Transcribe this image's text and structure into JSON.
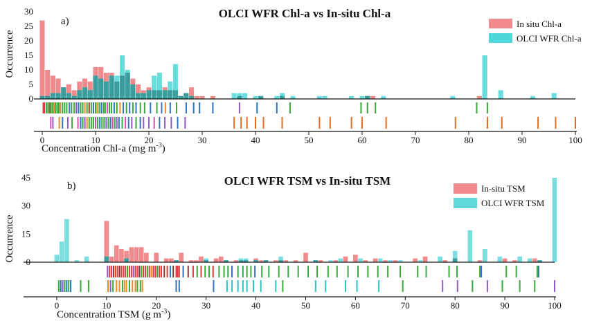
{
  "chart_data": [
    {
      "type": "bar",
      "panel_label": "a)",
      "title": "OLCI WFR Chl-a vs In-situ Chl-a",
      "xlabel": "Concentration Chl-a (mg m",
      "xlabel_sup": "-3",
      "xlabel_end": ")",
      "ylabel": "Occurrence",
      "xlim": [
        0,
        100
      ],
      "ylim": [
        0,
        30
      ],
      "yticks": [
        0,
        5,
        10,
        15,
        20,
        25,
        30
      ],
      "xticks": [
        0,
        10,
        20,
        30,
        40,
        50,
        60,
        70,
        80,
        90,
        100
      ],
      "bin_width": 1,
      "legend_position": "top-right",
      "colors": {
        "in_situ": "#f08a8c",
        "olci": "#4fd6d8",
        "overlap": "#3a9e9f"
      },
      "series": [
        {
          "name": "In situ Chl-a",
          "key": "in_situ",
          "x": [
            0,
            1,
            2,
            3,
            4,
            5,
            6,
            7,
            8,
            9,
            10,
            11,
            12,
            13,
            14,
            15,
            16,
            17,
            18,
            19,
            20,
            21,
            22,
            23,
            24,
            25,
            26,
            27,
            28,
            29,
            30,
            32,
            37,
            41,
            45,
            61,
            62,
            82
          ],
          "values": [
            27,
            10,
            8,
            7,
            4,
            5,
            3,
            6,
            7,
            6,
            11,
            11,
            9,
            9,
            6,
            8,
            9,
            7,
            5,
            3,
            4,
            3,
            3,
            4,
            3,
            3,
            1,
            2,
            4,
            1,
            1,
            1,
            1,
            1,
            1,
            1,
            1,
            1
          ]
        },
        {
          "name": "OLCI WFR Chl-a",
          "key": "olci",
          "x": [
            0,
            1,
            2,
            3,
            4,
            5,
            6,
            7,
            8,
            9,
            10,
            11,
            12,
            13,
            14,
            15,
            16,
            17,
            18,
            19,
            20,
            21,
            22,
            23,
            24,
            25,
            26,
            27,
            28,
            36,
            37,
            38,
            40,
            41,
            44,
            45,
            47,
            52,
            53,
            58,
            60,
            61,
            64,
            77,
            83,
            86,
            92,
            96
          ],
          "values": [
            1,
            1,
            2,
            2,
            4,
            2,
            1,
            3,
            4,
            3,
            8,
            7,
            6,
            8,
            8,
            15,
            10,
            5,
            2,
            2,
            3,
            8,
            9,
            3,
            6,
            12,
            1,
            2,
            1,
            2,
            2,
            2,
            1,
            1,
            1,
            2,
            1,
            1,
            1,
            1,
            1,
            1,
            1,
            1,
            15,
            3,
            1,
            2
          ]
        }
      ],
      "rug": {
        "in_situ": {
          "x": [
            0.2,
            0.4,
            0.8,
            1.1,
            1.4,
            1.6,
            1.9,
            2.2,
            2.5,
            2.8,
            3.1,
            3.4,
            3.8,
            4.2,
            4.6,
            5.1,
            5.5,
            6.0,
            6.4,
            6.8,
            7.2,
            7.6,
            8.0,
            8.4,
            8.8,
            9.2,
            9.6,
            10.0,
            10.3,
            10.7,
            11.1,
            11.5,
            11.8,
            12.2,
            12.6,
            13.0,
            13.5,
            14.0,
            14.6,
            15.2,
            15.8,
            16.4,
            17.0,
            17.6,
            18.4,
            19.2,
            20.3,
            21.5,
            22.4,
            23.1,
            24.0,
            25.2,
            27.0,
            28.4,
            29.5,
            32.0,
            37.0,
            40.3,
            44.0,
            46.5,
            59.8,
            61.0,
            62.5,
            81.5,
            83.5
          ],
          "colors": [
            "#e33b3b",
            "#e33b3b",
            "#3aa83a",
            "#3aa83a",
            "#e33b3b",
            "#3aa83a",
            "#3aa83a",
            "#e88c2a",
            "#3aa83a",
            "#3aa83a",
            "#3aa83a",
            "#e88c2a",
            "#3aa83a",
            "#3aa83a",
            "#3aa83a",
            "#2c73c2",
            "#3aa83a",
            "#3aa83a",
            "#8e5bc9",
            "#2c73c2",
            "#3aa83a",
            "#3aa83a",
            "#e88c2a",
            "#3aa83a",
            "#8a3a2a",
            "#3aa83a",
            "#2c73c2",
            "#3aa83a",
            "#e88c2a",
            "#3aa83a",
            "#2c73c2",
            "#3aa83a",
            "#3aa83a",
            "#d64fb0",
            "#3aa83a",
            "#3aa83a",
            "#2c73c2",
            "#3aa83a",
            "#e88c2a",
            "#2c73c2",
            "#3aa83a",
            "#2c73c2",
            "#3aa83a",
            "#2c73c2",
            "#3aa83a",
            "#3aa83a",
            "#2c73c2",
            "#3aa83a",
            "#2c73c2",
            "#e88c2a",
            "#2c73c2",
            "#3aa83a",
            "#2c73c2",
            "#2c73c2",
            "#2c73c2",
            "#2c73c2",
            "#8e5bc9",
            "#2c73c2",
            "#2c73c2",
            "#3aa83a",
            "#3aa83a",
            "#3aa83a",
            "#3aa83a",
            "#3aa83a",
            "#3aa83a"
          ]
        },
        "olci": {
          "x": [
            1.6,
            2.0,
            3.2,
            3.8,
            4.8,
            5.6,
            6.7,
            7.2,
            7.6,
            8.0,
            8.4,
            8.8,
            9.2,
            9.6,
            10.0,
            10.4,
            10.8,
            11.2,
            11.6,
            12.0,
            12.4,
            12.8,
            13.2,
            13.6,
            14.0,
            14.4,
            15.0,
            15.6,
            16.2,
            16.8,
            17.6,
            18.4,
            19.0,
            20.0,
            21.0,
            22.0,
            23.0,
            24.2,
            25.4,
            26.8,
            36.0,
            37.3,
            38.4,
            40.0,
            41.5,
            45.0,
            52.0,
            54.0,
            58.0,
            60.0,
            64.5,
            77.5,
            83.5,
            86.2,
            93.0,
            96.3,
            100
          ],
          "colors": [
            "#d64fb0",
            "#8e5bc9",
            "#e88c2a",
            "#2c73c2",
            "#8e5bc9",
            "#3aa83a",
            "#d64fb0",
            "#2c73c2",
            "#3aa83a",
            "#8e5bc9",
            "#e88c2a",
            "#3aa83a",
            "#3aa83a",
            "#3aa83a",
            "#d64fb0",
            "#3aa83a",
            "#2c73c2",
            "#3aa83a",
            "#3aa83a",
            "#8e5bc9",
            "#3aa83a",
            "#2c73c2",
            "#d64fb0",
            "#3aa83a",
            "#8e5bc9",
            "#2c73c2",
            "#3aa83a",
            "#d64fb0",
            "#2c73c2",
            "#8e5bc9",
            "#3aa83a",
            "#2c73c2",
            "#8e5bc9",
            "#8e5bc9",
            "#d64fb0",
            "#2c73c2",
            "#8e5bc9",
            "#8e5bc9",
            "#2c73c2",
            "#8e5bc9",
            "#e36b1f",
            "#e36b1f",
            "#e36b1f",
            "#e36b1f",
            "#e36b1f",
            "#e36b1f",
            "#e36b1f",
            "#e36b1f",
            "#e36b1f",
            "#e36b1f",
            "#e36b1f",
            "#e36b1f",
            "#e36b1f",
            "#e36b1f",
            "#e36b1f",
            "#e36b1f",
            "#e36b1f"
          ]
        }
      }
    },
    {
      "type": "bar",
      "panel_label": "b)",
      "title": "OLCI WFR TSM vs In-situ TSM",
      "xlabel": "Concentration TSM (g m",
      "xlabel_sup": "-3",
      "xlabel_end": ")",
      "ylabel": "Occurrence",
      "xlim": [
        -5,
        100
      ],
      "ylim": [
        0,
        45
      ],
      "yticks": [
        0,
        15,
        30,
        45
      ],
      "xticks": [
        0,
        10,
        20,
        30,
        40,
        50,
        60,
        70,
        80,
        90,
        100
      ],
      "bin_width": 1,
      "legend_position": "top-right",
      "colors": {
        "in_situ": "#f08a8c",
        "olci": "#5fd9db",
        "overlap": "#3a9e9f"
      },
      "series": [
        {
          "name": "In-situ TSM",
          "key": "in_situ",
          "x": [
            10,
            11,
            12,
            13,
            14,
            15,
            16,
            17,
            18,
            20,
            22,
            23,
            24,
            25,
            27,
            28,
            29,
            30,
            32,
            33,
            34,
            36,
            37,
            38,
            40,
            41,
            42,
            44,
            45,
            46,
            48,
            50,
            52,
            53,
            56,
            58,
            60,
            62,
            64,
            66,
            68,
            72,
            74,
            78,
            80,
            85,
            90,
            92,
            96,
            97
          ],
          "values": [
            22,
            3,
            9,
            7,
            6,
            8,
            8,
            8,
            5,
            5,
            2,
            2,
            1,
            5,
            1,
            1,
            3,
            1,
            2,
            3,
            1,
            1,
            1,
            1,
            2,
            1,
            1,
            1,
            1,
            1,
            1,
            5,
            1,
            1,
            1,
            3,
            4,
            1,
            2,
            1,
            1,
            2,
            3,
            1,
            2,
            1,
            2,
            1,
            2,
            1
          ]
        },
        {
          "name": "OLCI WFR TSM",
          "key": "olci",
          "x": [
            0,
            1,
            2,
            4,
            6,
            10,
            14,
            24,
            30,
            34,
            37,
            38,
            40,
            42,
            45,
            52,
            55,
            57,
            61,
            65,
            67,
            69,
            73,
            77,
            80,
            83,
            86,
            89,
            93,
            95,
            97,
            100
          ],
          "values": [
            4,
            11,
            23,
            1,
            3,
            3,
            2,
            1,
            2,
            1,
            2,
            2,
            1,
            1,
            3,
            1,
            1,
            2,
            2,
            2,
            1,
            1,
            1,
            3,
            6,
            17,
            7,
            3,
            3,
            2,
            1,
            45
          ]
        }
      ],
      "rug": {
        "in_situ": {
          "x": [
            10.2,
            10.6,
            11.0,
            11.4,
            11.8,
            12.2,
            12.6,
            13.0,
            13.4,
            13.8,
            14.2,
            14.6,
            15.0,
            15.4,
            15.8,
            16.2,
            16.6,
            17.0,
            17.4,
            17.8,
            18.2,
            18.6,
            19.0,
            19.4,
            19.8,
            20.2,
            20.6,
            21.0,
            21.6,
            22.2,
            22.8,
            23.4,
            24.0,
            24.3,
            24.6,
            25.4,
            26.4,
            27.4,
            28.2,
            29.0,
            29.8,
            30.6,
            31.4,
            32.6,
            33.6,
            34.4,
            35.2,
            36.4,
            37.4,
            38.2,
            39.0,
            39.8,
            41.2,
            42.6,
            44.6,
            46.5,
            48.5,
            50.5,
            52.3,
            54.5,
            56.3,
            58.5,
            60.5,
            62.5,
            64.5,
            66.5,
            69.0,
            72.5,
            74.2,
            78.8,
            80.4,
            85.0,
            90.3,
            92.3,
            96.5
          ],
          "colors": [
            "#8e5bc9",
            "#e33b3b",
            "#e33b3b",
            "#8a3a2a",
            "#e33b3b",
            "#e33b3b",
            "#8a3a2a",
            "#e33b3b",
            "#e33b3b",
            "#e33b3b",
            "#3aa83a",
            "#e33b3b",
            "#e33b3b",
            "#8e5bc9",
            "#e33b3b",
            "#e33b3b",
            "#8a3a2a",
            "#3aa83a",
            "#e33b3b",
            "#e33b3b",
            "#3aa83a",
            "#e33b3b",
            "#e88c2a",
            "#e33b3b",
            "#e33b3b",
            "#3aa83a",
            "#e33b3b",
            "#e33b3b",
            "#8a3a2a",
            "#e33b3b",
            "#2c73c2",
            "#8a3a2a",
            "#e33b3b",
            "#e33b3b",
            "#e33b3b",
            "#2c73c2",
            "#8a3a2a",
            "#e33b3b",
            "#3aa83a",
            "#e33b3b",
            "#3aa83a",
            "#3aa83a",
            "#e33b3b",
            "#3aa83a",
            "#3aa83a",
            "#3aa83a",
            "#2c73c2",
            "#3aa83a",
            "#3aa83a",
            "#3aa83a",
            "#3aa83a",
            "#2c73c2",
            "#3aa83a",
            "#3aa83a",
            "#3aa83a",
            "#3aa83a",
            "#3aa83a",
            "#3aa83a",
            "#3aa83a",
            "#3aa83a",
            "#3aa83a",
            "#3aa83a",
            "#3aa83a",
            "#3aa83a",
            "#3aa83a",
            "#3aa83a",
            "#3aa83a",
            "#3aa83a",
            "#3aa83a",
            "#3aa83a",
            "#3aa83a",
            "#3aa83a",
            "#3aa83a",
            "#3aa83a",
            "#3aa83a"
          ],
          "outlier_x": [
            85.0,
            96.5
          ],
          "outlier_colors": [
            "#2c73c2",
            "#2c73c2"
          ]
        },
        "olci": {
          "x": [
            0.4,
            0.8,
            1.2,
            1.6,
            2.0,
            2.4,
            2.8,
            4.8,
            6.4,
            10.3,
            10.8,
            11.3,
            12.0,
            12.6,
            13.2,
            13.6,
            14.0,
            14.6,
            15.2,
            15.8,
            16.2,
            16.8,
            17.2,
            24.0,
            24.6,
            31.5,
            34.2,
            35.2,
            36.4,
            37.4,
            38.2,
            39.5,
            41.0,
            44.0,
            45.4,
            52.0,
            54.0,
            58.0,
            60.3,
            64.7,
            69.5,
            77.5,
            80.5,
            83.5,
            86.5,
            89.5,
            93.0,
            96.0,
            100
          ],
          "colors": [
            "#3aa83a",
            "#2c73c2",
            "#8e5bc9",
            "#3aa83a",
            "#2c73c2",
            "#3aa83a",
            "#2c73c2",
            "#3aa83a",
            "#3aa83a",
            "#e88c2a",
            "#8e5bc9",
            "#3aa83a",
            "#e88c2a",
            "#e88c2a",
            "#3aa83a",
            "#e88c2a",
            "#e88c2a",
            "#3aa83a",
            "#e88c2a",
            "#e88c2a",
            "#3aa83a",
            "#3aa83a",
            "#e88c2a",
            "#2c73c2",
            "#2c73c2",
            "#2c73c2",
            "#2ac4c4",
            "#2ac4c4",
            "#2ac4c4",
            "#2ac4c4",
            "#2ac4c4",
            "#2ac4c4",
            "#2ac4c4",
            "#2ac4c4",
            "#3aa83a",
            "#2ac4c4",
            "#2ac4c4",
            "#2ac4c4",
            "#2ac4c4",
            "#2ac4c4",
            "#3aa83a",
            "#8e5bc9",
            "#8e5bc9",
            "#3aa83a",
            "#8e5bc9",
            "#3aa83a",
            "#3aa83a",
            "#3aa83a",
            "#8e5bc9"
          ]
        }
      }
    }
  ]
}
